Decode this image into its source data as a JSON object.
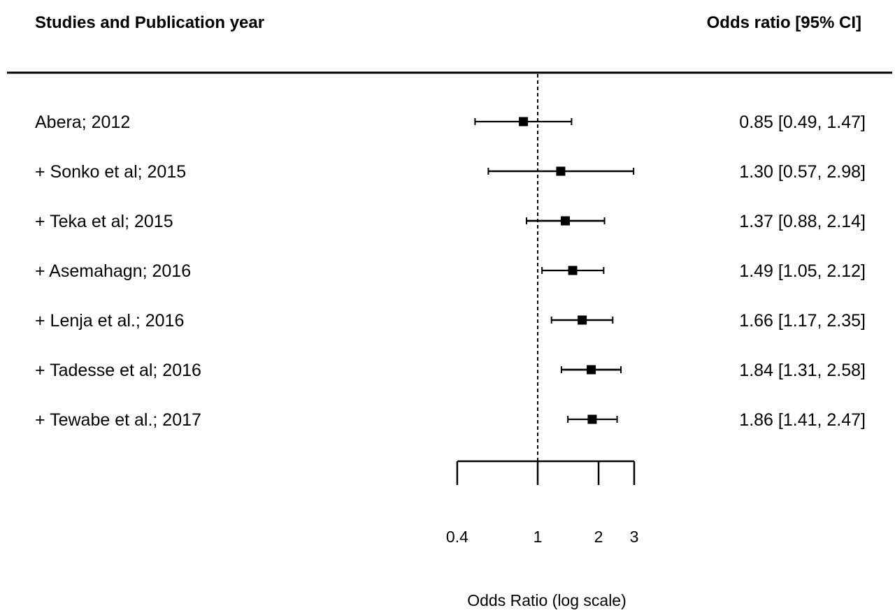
{
  "chart_data": {
    "type": "forest",
    "columns": {
      "studies_header": "Studies and Publication year",
      "estimate_header": "Odds ratio [95% CI]"
    },
    "studies": [
      {
        "label": "Abera; 2012",
        "or": 0.85,
        "lower": 0.49,
        "upper": 1.47,
        "text": "0.85 [0.49, 1.47]"
      },
      {
        "label": "+ Sonko et al; 2015",
        "or": 1.3,
        "lower": 0.57,
        "upper": 2.98,
        "text": "1.30 [0.57, 2.98]"
      },
      {
        "label": "+ Teka et al; 2015",
        "or": 1.37,
        "lower": 0.88,
        "upper": 2.14,
        "text": "1.37 [0.88, 2.14]"
      },
      {
        "label": "+ Asemahagn; 2016",
        "or": 1.49,
        "lower": 1.05,
        "upper": 2.12,
        "text": "1.49 [1.05, 2.12]"
      },
      {
        "label": "+ Lenja et al.; 2016",
        "or": 1.66,
        "lower": 1.17,
        "upper": 2.35,
        "text": "1.66 [1.17, 2.35]"
      },
      {
        "label": "+ Tadesse et al; 2016",
        "or": 1.84,
        "lower": 1.31,
        "upper": 2.58,
        "text": "1.84 [1.31, 2.58]"
      },
      {
        "label": "+ Tewabe et al.; 2017",
        "or": 1.86,
        "lower": 1.41,
        "upper": 2.47,
        "text": "1.86 [1.41, 2.47]"
      }
    ],
    "x_axis": {
      "scale": "log",
      "ticks": [
        0.4,
        1,
        2,
        3
      ],
      "tick_labels": [
        "0.4",
        "1",
        "2",
        "3"
      ],
      "reference_line": 1,
      "label": "Odds Ratio (log scale)"
    }
  }
}
